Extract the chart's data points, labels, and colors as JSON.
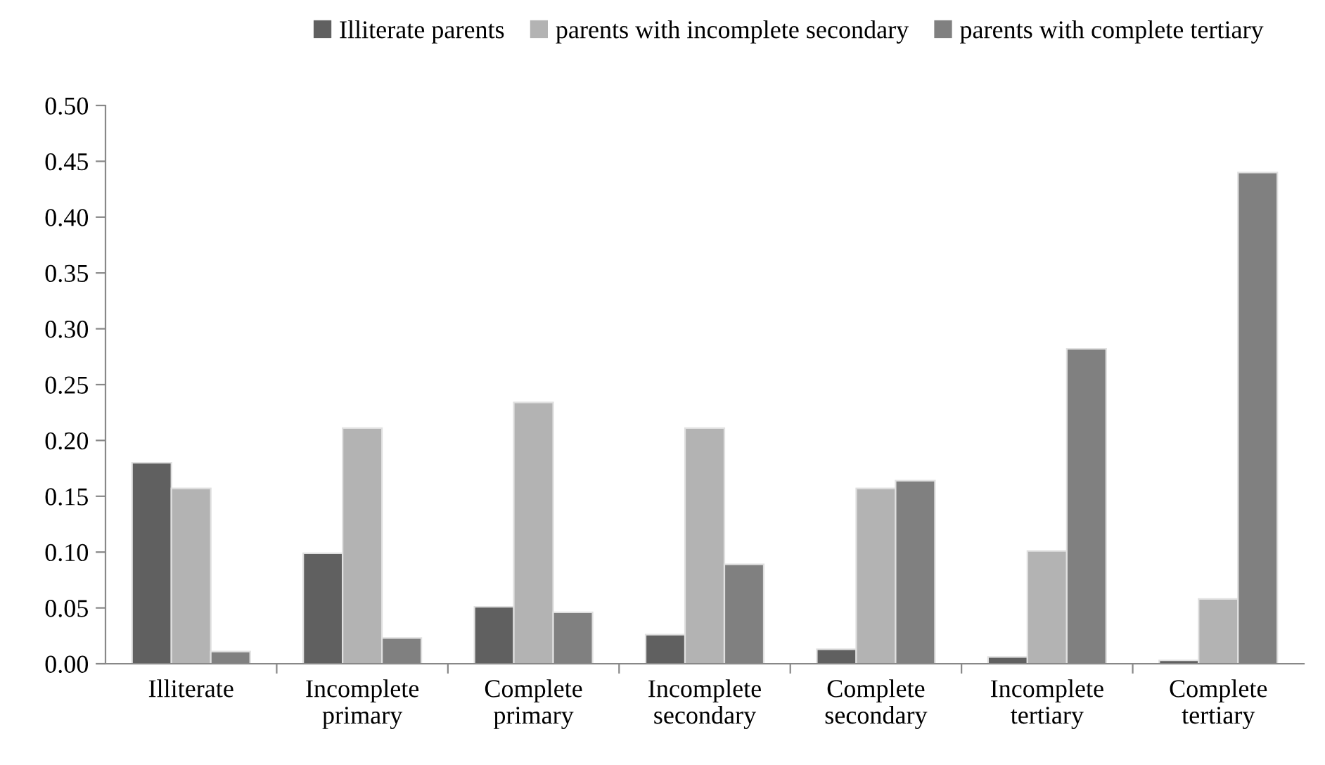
{
  "chart_data": {
    "type": "bar",
    "categories": [
      "Illiterate",
      "Incomplete\nprimary",
      "Complete\nprimary",
      "Incomplete\nsecondary",
      "Complete\nsecondary",
      "Incomplete\ntertiary",
      "Complete\ntertiary"
    ],
    "series": [
      {
        "name": "Illiterate parents",
        "color": "#606060",
        "values": [
          0.18,
          0.099,
          0.051,
          0.026,
          0.013,
          0.006,
          0.003
        ]
      },
      {
        "name": "parents with incomplete secondary",
        "color": "#b3b3b3",
        "values": [
          0.157,
          0.211,
          0.234,
          0.211,
          0.157,
          0.101,
          0.058
        ]
      },
      {
        "name": "parents with complete tertiary",
        "color": "#808080",
        "values": [
          0.011,
          0.023,
          0.046,
          0.089,
          0.164,
          0.282,
          0.44
        ]
      }
    ],
    "ylim": [
      0,
      0.5
    ],
    "yticks": [
      {
        "value": 0,
        "label": "0.00"
      },
      {
        "value": 0.05,
        "label": "0.05"
      },
      {
        "value": 0.1,
        "label": "0.10"
      },
      {
        "value": 0.15,
        "label": "0.15"
      },
      {
        "value": 0.2,
        "label": "0.20"
      },
      {
        "value": 0.25,
        "label": "0.25"
      },
      {
        "value": 0.3,
        "label": "0.30"
      },
      {
        "value": 0.35,
        "label": "0.35"
      },
      {
        "value": 0.4,
        "label": "0.40"
      },
      {
        "value": 0.45,
        "label": "0.45"
      },
      {
        "value": 0.5,
        "label": "0.50"
      }
    ],
    "grid": false,
    "legend": "top"
  }
}
